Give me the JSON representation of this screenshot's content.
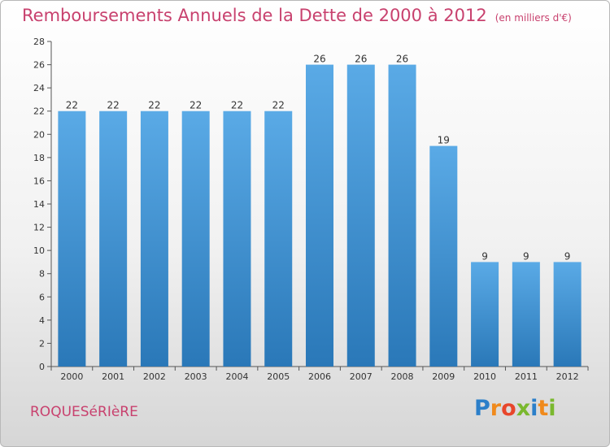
{
  "header": {
    "title": "Remboursements Annuels de la Dette de 2000 à 2012",
    "unit": "(en milliers d'€)"
  },
  "footer": {
    "commune": "ROQUESéRIèRE",
    "logo": "Proxiti"
  },
  "colors": {
    "title": "#c8416e",
    "bar_top": "#5aaae6",
    "bar_bottom": "#2a78b8",
    "logo_letters": [
      "#2b7fc9",
      "#f08a1c",
      "#e8462b",
      "#7ab82e",
      "#2b7fc9",
      "#f08a1c",
      "#7ab82e"
    ]
  },
  "chart_data": {
    "type": "bar",
    "categories": [
      "2000",
      "2001",
      "2002",
      "2003",
      "2004",
      "2005",
      "2006",
      "2007",
      "2008",
      "2009",
      "2010",
      "2011",
      "2012"
    ],
    "values": [
      22,
      22,
      22,
      22,
      22,
      22,
      26,
      26,
      26,
      19,
      9,
      9,
      9
    ],
    "title": "Remboursements Annuels de la Dette de 2000 à 2012",
    "ylim": [
      0,
      28
    ],
    "yticks": [
      0,
      2,
      4,
      6,
      8,
      10,
      12,
      14,
      16,
      18,
      20,
      22,
      24,
      26,
      28
    ],
    "grid": false
  }
}
